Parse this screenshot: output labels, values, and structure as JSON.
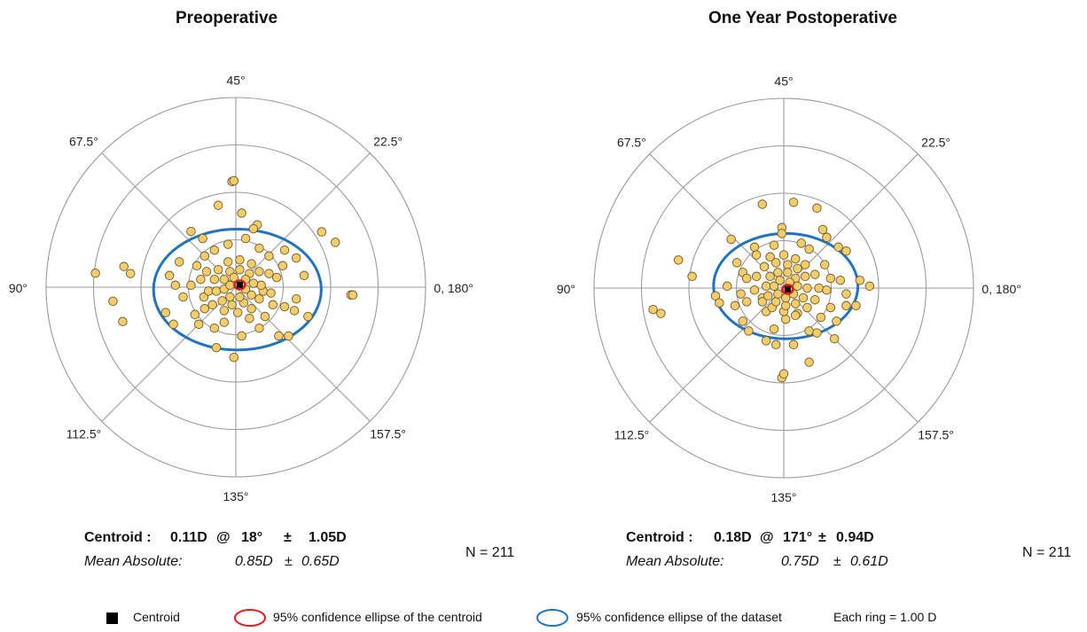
{
  "chart_data": [
    {
      "type": "scatter",
      "title": "Preoperative",
      "angle_labels": [
        "0, 180°",
        "22.5°",
        "45°",
        "67.5°",
        "90°",
        "112.5°",
        "135°",
        "157.5°"
      ],
      "ring_step_D": 1.0,
      "rings": 4,
      "centroid": {
        "label": "Centroid :",
        "magnitude": "0.11D",
        "at": "@",
        "axis": "18°",
        "pm": "±",
        "sd": "1.05D"
      },
      "mean_absolute": {
        "label": "Mean Absolute:",
        "value": "0.85D",
        "pm": "±",
        "sd": "0.65D"
      },
      "n_label": "N = 211",
      "centroid_xy": [
        0.1,
        0.06
      ],
      "dataset_ellipse": {
        "cx": 0.04,
        "cy": -0.06,
        "rx": 2.15,
        "ry": 1.55
      },
      "points": [
        [
          -0.1,
          2.71
        ],
        [
          -0.05,
          2.73
        ],
        [
          -0.45,
          2.1
        ],
        [
          -1.15,
          1.43
        ],
        [
          0.55,
          1.6
        ],
        [
          2.2,
          1.42
        ],
        [
          2.55,
          1.15
        ],
        [
          -3.6,
          0.36
        ],
        [
          -2.87,
          0.53
        ],
        [
          -2.7,
          0.35
        ],
        [
          -3.15,
          -0.36
        ],
        [
          -2.9,
          -0.88
        ],
        [
          -1.8,
          -0.65
        ],
        [
          -1.7,
          0.3
        ],
        [
          -1.55,
          0.05
        ],
        [
          -1.15,
          0.05
        ],
        [
          -1.35,
          -0.25
        ],
        [
          -1.05,
          -0.7
        ],
        [
          -0.82,
          -0.25
        ],
        [
          2.95,
          -0.2
        ],
        [
          3.0,
          -0.2
        ],
        [
          1.25,
          -0.5
        ],
        [
          1.55,
          -0.3
        ],
        [
          1.5,
          -0.6
        ],
        [
          1.35,
          -1.25
        ],
        [
          1.1,
          -1.25
        ],
        [
          0.6,
          -1.05
        ],
        [
          0.15,
          -1.25
        ],
        [
          -0.5,
          -1.55
        ],
        [
          -0.05,
          -1.8
        ],
        [
          -0.55,
          -1.05
        ],
        [
          -0.95,
          -0.95
        ],
        [
          -0.3,
          -0.9
        ],
        [
          0.35,
          -0.8
        ],
        [
          0.75,
          -0.75
        ],
        [
          0.95,
          -0.45
        ],
        [
          0.7,
          -0.1
        ],
        [
          1.05,
          0.25
        ],
        [
          1.2,
          0.55
        ],
        [
          0.85,
          0.8
        ],
        [
          0.6,
          1.0
        ],
        [
          0.25,
          1.25
        ],
        [
          -0.2,
          1.1
        ],
        [
          -0.55,
          0.95
        ],
        [
          -0.8,
          0.8
        ],
        [
          -1.0,
          0.55
        ],
        [
          -0.9,
          0.2
        ],
        [
          -0.7,
          -0.1
        ],
        [
          -0.6,
          -0.45
        ],
        [
          -0.3,
          -0.6
        ],
        [
          0.05,
          -0.65
        ],
        [
          0.4,
          -0.55
        ],
        [
          0.6,
          -0.3
        ],
        [
          0.65,
          0.05
        ],
        [
          0.6,
          0.4
        ],
        [
          0.4,
          0.6
        ],
        [
          0.1,
          0.7
        ],
        [
          -0.2,
          0.65
        ],
        [
          -0.45,
          0.45
        ],
        [
          -0.55,
          0.2
        ],
        [
          -0.5,
          -0.1
        ],
        [
          -0.35,
          -0.35
        ],
        [
          -0.1,
          -0.45
        ],
        [
          0.2,
          -0.4
        ],
        [
          0.4,
          -0.2
        ],
        [
          0.45,
          0.1
        ],
        [
          0.35,
          0.35
        ],
        [
          0.1,
          0.45
        ],
        [
          -0.15,
          0.4
        ],
        [
          -0.3,
          0.2
        ],
        [
          -0.3,
          -0.05
        ],
        [
          -0.15,
          -0.25
        ],
        [
          0.1,
          -0.25
        ],
        [
          0.25,
          -0.05
        ],
        [
          0.25,
          0.2
        ],
        [
          -0.05,
          0.25
        ],
        [
          -0.15,
          0.05
        ],
        [
          0.85,
          0.35
        ],
        [
          0.9,
          -0.15
        ],
        [
          -0.75,
          0.4
        ],
        [
          -0.8,
          -0.55
        ],
        [
          1.25,
          0.95
        ],
        [
          1.55,
          0.75
        ],
        [
          1.75,
          0.3
        ],
        [
          -1.45,
          0.65
        ],
        [
          -1.6,
          -0.95
        ],
        [
          1.85,
          -0.75
        ],
        [
          0.45,
          1.5
        ],
        [
          0.15,
          1.9
        ],
        [
          -0.85,
          1.25
        ]
      ]
    },
    {
      "type": "scatter",
      "title": "One Year Postoperative",
      "angle_labels": [
        "0, 180°",
        "22.5°",
        "45°",
        "67.5°",
        "90°",
        "112.5°",
        "135°",
        "157.5°"
      ],
      "ring_step_D": 1.0,
      "rings": 4,
      "centroid": {
        "label": "Centroid :",
        "magnitude": "0.18D",
        "at": "@",
        "axis": "171°",
        "pm": "±",
        "sd": "0.94D"
      },
      "mean_absolute": {
        "label": "Mean Absolute:",
        "value": "0.75D",
        "pm": "±",
        "sd": "0.61D"
      },
      "n_label": "N = 211",
      "centroid_xy": [
        0.1,
        -0.03
      ],
      "dataset_ellipse": {
        "cx": 0.05,
        "cy": 0.05,
        "rx": 1.85,
        "ry": 1.35
      },
      "points": [
        [
          -0.55,
          2.15
        ],
        [
          0.25,
          2.2
        ],
        [
          0.85,
          2.05
        ],
        [
          -0.05,
          1.55
        ],
        [
          -0.05,
          1.4
        ],
        [
          1.0,
          1.5
        ],
        [
          0.45,
          1.15
        ],
        [
          1.1,
          1.3
        ],
        [
          1.4,
          1.05
        ],
        [
          1.6,
          0.95
        ],
        [
          -1.35,
          1.25
        ],
        [
          -0.75,
          1.05
        ],
        [
          -2.7,
          0.72
        ],
        [
          -2.35,
          0.3
        ],
        [
          -3.35,
          -0.55
        ],
        [
          -3.15,
          -0.65
        ],
        [
          -1.75,
          -0.2
        ],
        [
          -1.65,
          -0.38
        ],
        [
          -1.45,
          0.05
        ],
        [
          -1.25,
          -0.45
        ],
        [
          -1.05,
          -0.85
        ],
        [
          -0.9,
          -1.1
        ],
        [
          -0.95,
          -0.35
        ],
        [
          -0.55,
          -0.25
        ],
        [
          -0.45,
          -0.6
        ],
        [
          -0.45,
          -1.35
        ],
        [
          -0.2,
          -1.45
        ],
        [
          0.05,
          -0.8
        ],
        [
          0.35,
          -0.65
        ],
        [
          0.25,
          -1.45
        ],
        [
          0.65,
          -1.1
        ],
        [
          0.85,
          -1.15
        ],
        [
          1.35,
          -0.85
        ],
        [
          1.3,
          -1.3
        ],
        [
          1.2,
          -0.5
        ],
        [
          1.6,
          -0.45
        ],
        [
          1.85,
          -0.45
        ],
        [
          1.95,
          0.2
        ],
        [
          2.2,
          0.05
        ],
        [
          -0.05,
          -2.3
        ],
        [
          0.0,
          -2.2
        ],
        [
          0.65,
          -1.9
        ],
        [
          -0.7,
          0.85
        ],
        [
          -0.35,
          0.8
        ],
        [
          0.0,
          0.85
        ],
        [
          0.3,
          0.75
        ],
        [
          0.55,
          0.6
        ],
        [
          0.8,
          0.35
        ],
        [
          0.9,
          0.0
        ],
        [
          0.8,
          -0.3
        ],
        [
          0.6,
          -0.5
        ],
        [
          0.3,
          -0.7
        ],
        [
          0.0,
          -0.6
        ],
        [
          -0.3,
          -0.5
        ],
        [
          -0.55,
          -0.35
        ],
        [
          -0.75,
          -0.05
        ],
        [
          -0.7,
          0.3
        ],
        [
          -0.5,
          0.55
        ],
        [
          -0.2,
          0.65
        ],
        [
          0.1,
          0.6
        ],
        [
          0.35,
          0.5
        ],
        [
          0.55,
          0.3
        ],
        [
          0.6,
          0.0
        ],
        [
          0.5,
          -0.25
        ],
        [
          0.3,
          -0.4
        ],
        [
          0.05,
          -0.45
        ],
        [
          -0.2,
          -0.35
        ],
        [
          -0.4,
          -0.2
        ],
        [
          -0.45,
          0.05
        ],
        [
          -0.35,
          0.3
        ],
        [
          -0.15,
          0.4
        ],
        [
          0.1,
          0.4
        ],
        [
          0.3,
          0.25
        ],
        [
          0.35,
          0.05
        ],
        [
          0.25,
          -0.15
        ],
        [
          0.05,
          -0.25
        ],
        [
          -0.15,
          -0.15
        ],
        [
          -0.25,
          0.05
        ],
        [
          -0.1,
          0.2
        ],
        [
          0.15,
          0.15
        ],
        [
          1.05,
          0.6
        ],
        [
          1.2,
          0.25
        ],
        [
          1.45,
          0.2
        ],
        [
          -1.05,
          0.4
        ],
        [
          -1.2,
          0.65
        ],
        [
          -0.95,
          0.25
        ],
        [
          0.65,
          1.0
        ],
        [
          -0.25,
          1.1
        ],
        [
          1.1,
          -0.05
        ],
        [
          -0.25,
          -1.05
        ],
        [
          0.95,
          -0.75
        ],
        [
          1.6,
          -0.15
        ],
        [
          -1.1,
          -0.15
        ]
      ]
    }
  ],
  "legend": {
    "centroid": "Centroid",
    "centroid_ellipse": "95% confidence ellipse of  the centroid",
    "dataset_ellipse": "95% confidence ellipse of the dataset",
    "ring_note": "Each ring = 1.00  D"
  },
  "colors": {
    "point_fill": "#f3cd6a",
    "point_stroke": "#6b5a2e",
    "dataset_ellipse": "#1f73c2",
    "centroid_ellipse": "#e31a1c",
    "centroid": "#000000",
    "grid": "#9a9a9a"
  }
}
